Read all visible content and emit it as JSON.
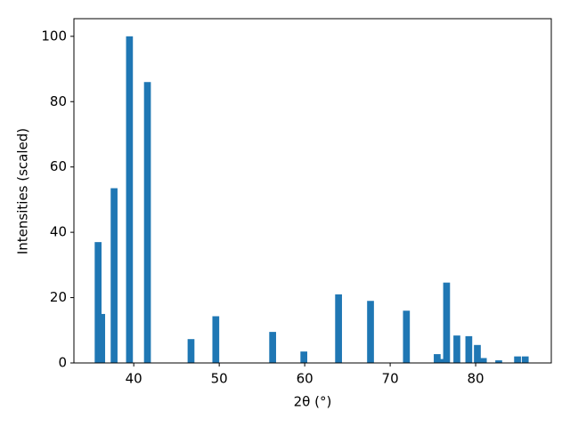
{
  "chart_data": {
    "type": "bar",
    "x": [
      35.83,
      36.25,
      37.7,
      39.5,
      41.6,
      46.7,
      49.6,
      56.25,
      59.9,
      63.96,
      67.7,
      71.9,
      75.5,
      76.0,
      76.6,
      77.8,
      79.2,
      80.2,
      80.9,
      82.7,
      84.9,
      85.8
    ],
    "values": [
      37,
      15,
      53.5,
      100,
      86,
      7.3,
      14.3,
      9.5,
      3.5,
      21,
      19,
      16,
      2.7,
      1.2,
      24.6,
      8.4,
      8.2,
      5.5,
      1.5,
      0.8,
      2,
      2
    ],
    "color": "#1f77b4",
    "xlabel": "2θ (°)",
    "ylabel": "Intensities (scaled)",
    "xlim": [
      33.0,
      88.85
    ],
    "ylim": [
      0,
      105.4
    ],
    "xticks": [
      40,
      50,
      60,
      70,
      80
    ],
    "yticks": [
      0,
      20,
      40,
      60,
      80,
      100
    ],
    "grid": false
  }
}
